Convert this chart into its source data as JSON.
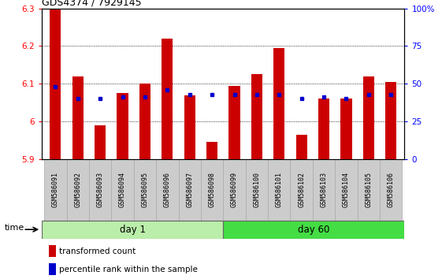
{
  "title": "GDS4374 / 7929145",
  "samples": [
    "GSM586091",
    "GSM586092",
    "GSM586093",
    "GSM586094",
    "GSM586095",
    "GSM586096",
    "GSM586097",
    "GSM586098",
    "GSM586099",
    "GSM586100",
    "GSM586101",
    "GSM586102",
    "GSM586103",
    "GSM586104",
    "GSM586105",
    "GSM586106"
  ],
  "bar_values": [
    6.3,
    6.12,
    5.99,
    6.075,
    6.1,
    6.22,
    6.07,
    5.945,
    6.095,
    6.125,
    6.195,
    5.965,
    6.06,
    6.06,
    6.12,
    6.105
  ],
  "percentile_values": [
    48,
    40,
    40,
    41,
    41,
    46,
    43,
    43,
    43,
    43,
    43,
    40,
    41,
    40,
    43,
    43
  ],
  "y_min": 5.9,
  "y_max": 6.3,
  "bar_color": "#CC0000",
  "percentile_color": "#0000CC",
  "day1_color": "#BBEEAA",
  "day60_color": "#44DD44",
  "day1_samples": 8,
  "day60_samples": 8,
  "day1_label": "day 1",
  "day60_label": "day 60",
  "yticks_left": [
    5.9,
    6.0,
    6.1,
    6.2,
    6.3
  ],
  "ytick_labels_right": [
    "0",
    "25",
    "50",
    "75",
    "100%"
  ],
  "bg_color": "#FFFFFF",
  "bar_width": 0.5,
  "legend_red_label": "transformed count",
  "legend_blue_label": "percentile rank within the sample",
  "sample_box_color": "#CCCCCC",
  "sample_box_border": "#AAAAAA"
}
